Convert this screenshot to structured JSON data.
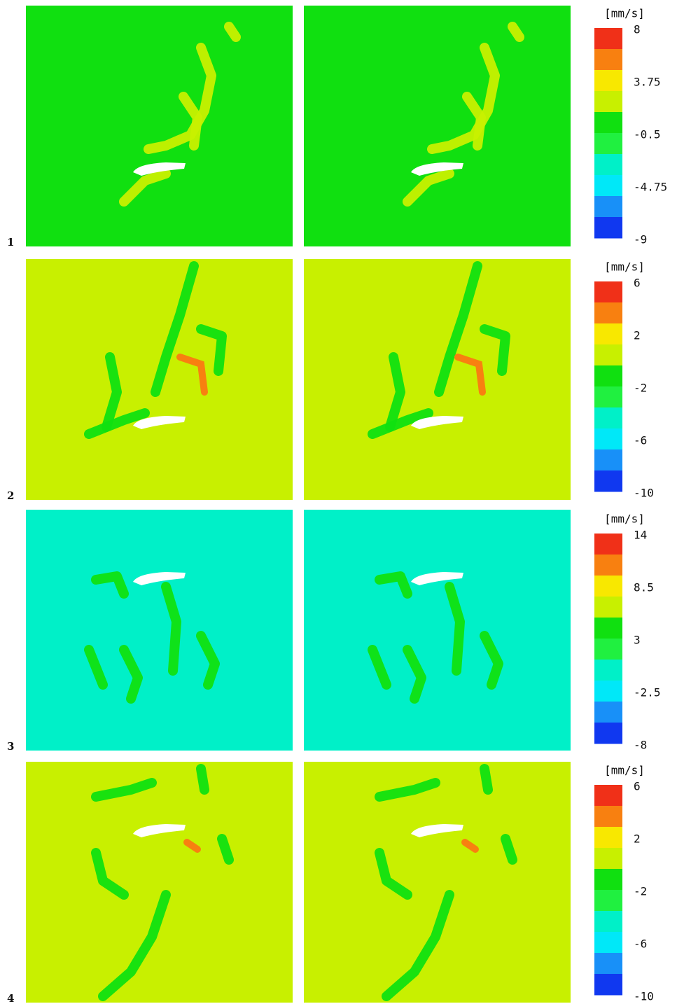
{
  "rows": [
    {
      "label": "1",
      "unit": "[mm/s]",
      "ticks": [
        8,
        3.75,
        -0.5,
        -4.75,
        -9
      ]
    },
    {
      "label": "2",
      "unit": "[mm/s]",
      "ticks": [
        6,
        2,
        -2,
        -6,
        -10
      ]
    },
    {
      "label": "3",
      "unit": "[mm/s]",
      "ticks": [
        14,
        8.5,
        3,
        -2.5,
        -8
      ]
    },
    {
      "label": "4",
      "unit": "[mm/s]",
      "ticks": [
        6,
        2,
        -2,
        -6,
        -10
      ]
    }
  ],
  "colorbar_colors": [
    "#f03018",
    "#f88010",
    "#f8e800",
    "#c8f000",
    "#10e010",
    "#20f040",
    "#00f0c8",
    "#00e8f8",
    "#1890f8",
    "#1038f0"
  ]
}
